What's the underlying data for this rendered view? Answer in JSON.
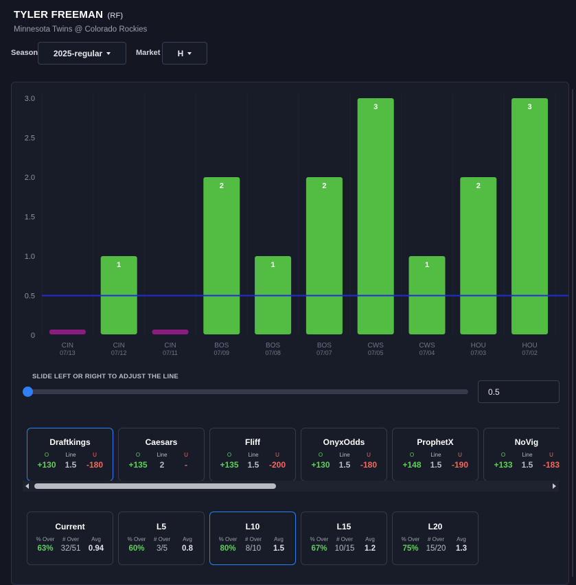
{
  "header": {
    "player_name": "TYLER FREEMAN",
    "position": "(RF)",
    "matchup": "Minnesota Twins @ Colorado Rockies"
  },
  "controls": {
    "season_label": "Season",
    "season_value": "2025-regular",
    "market_label": "Market",
    "market_value": "H"
  },
  "colors": {
    "over_bar": "#53bc42",
    "under_bar": "#8b1c80",
    "line": "#1f2dd8",
    "accent": "#2f7ff5"
  },
  "chart_data": {
    "type": "bar",
    "categories": [
      {
        "team": "CIN",
        "date": "07/13"
      },
      {
        "team": "CIN",
        "date": "07/12"
      },
      {
        "team": "CIN",
        "date": "07/11"
      },
      {
        "team": "BOS",
        "date": "07/09"
      },
      {
        "team": "BOS",
        "date": "07/08"
      },
      {
        "team": "BOS",
        "date": "07/07"
      },
      {
        "team": "CWS",
        "date": "07/05"
      },
      {
        "team": "CWS",
        "date": "07/04"
      },
      {
        "team": "HOU",
        "date": "07/03"
      },
      {
        "team": "HOU",
        "date": "07/02"
      }
    ],
    "values": [
      0,
      1,
      0,
      2,
      1,
      2,
      3,
      1,
      2,
      3
    ],
    "data_labels": [
      "",
      "1",
      "",
      "2",
      "1",
      "2",
      "3",
      "1",
      "2",
      "3"
    ],
    "line_value": 0.5,
    "ylim": [
      0,
      3
    ],
    "yticks": [
      "0",
      "0.5",
      "1.0",
      "1.5",
      "2.0",
      "2.5",
      "3.0"
    ],
    "grid": true
  },
  "slider": {
    "title": "SLIDE LEFT OR RIGHT TO ADJUST THE LINE",
    "value": "0.5",
    "position_fraction": 0
  },
  "books": [
    {
      "name": "Draftkings",
      "over_label": "O",
      "line_label": "Line",
      "under_label": "U",
      "over": "+130",
      "line": "1.5",
      "under": "-180",
      "active": true
    },
    {
      "name": "Caesars",
      "over_label": "O",
      "line_label": "Line",
      "under_label": "U",
      "over": "+135",
      "line": "2",
      "under": "-",
      "active": false
    },
    {
      "name": "Fliff",
      "over_label": "O",
      "line_label": "Line",
      "under_label": "U",
      "over": "+135",
      "line": "1.5",
      "under": "-200",
      "active": false
    },
    {
      "name": "OnyxOdds",
      "over_label": "O",
      "line_label": "Line",
      "under_label": "U",
      "over": "+130",
      "line": "1.5",
      "under": "-180",
      "active": false
    },
    {
      "name": "ProphetX",
      "over_label": "O",
      "line_label": "Line",
      "under_label": "U",
      "over": "+148",
      "line": "1.5",
      "under": "-190",
      "active": false
    },
    {
      "name": "NoVig",
      "over_label": "O",
      "line_label": "Line",
      "under_label": "U",
      "over": "+133",
      "line": "1.5",
      "under": "-183",
      "active": false
    }
  ],
  "splits": [
    {
      "name": "Current",
      "pct_label": "% Over",
      "num_label": "# Over",
      "avg_label": "Avg",
      "pct": "63%",
      "num": "32/51",
      "avg": "0.94",
      "active": false
    },
    {
      "name": "L5",
      "pct_label": "% Over",
      "num_label": "# Over",
      "avg_label": "Avg",
      "pct": "60%",
      "num": "3/5",
      "avg": "0.8",
      "active": false
    },
    {
      "name": "L10",
      "pct_label": "% Over",
      "num_label": "# Over",
      "avg_label": "Avg",
      "pct": "80%",
      "num": "8/10",
      "avg": "1.5",
      "active": true
    },
    {
      "name": "L15",
      "pct_label": "% Over",
      "num_label": "# Over",
      "avg_label": "Avg",
      "pct": "67%",
      "num": "10/15",
      "avg": "1.2",
      "active": false
    },
    {
      "name": "L20",
      "pct_label": "% Over",
      "num_label": "# Over",
      "avg_label": "Avg",
      "pct": "75%",
      "num": "15/20",
      "avg": "1.3",
      "active": false
    }
  ]
}
